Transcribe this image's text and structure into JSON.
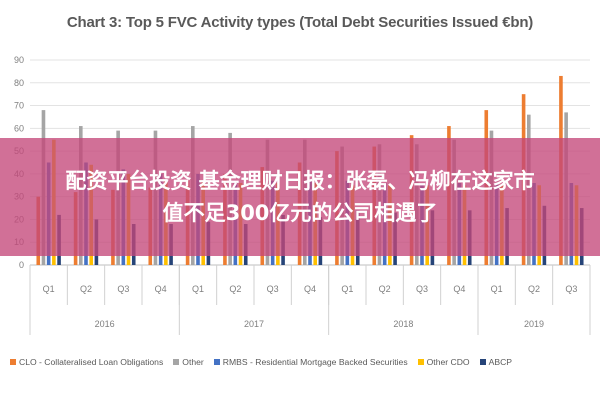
{
  "chart_data": {
    "type": "bar",
    "title": "Chart 3: Top 5 FVC Activity types (Total Debt Securities Issued €bn)",
    "xlabel": "",
    "ylabel": "",
    "ylim": [
      0,
      90
    ],
    "y_ticks": [
      "0",
      "10",
      "20",
      "30",
      "40",
      "50",
      "60",
      "70",
      "80",
      "90"
    ],
    "grid": true,
    "legend_position": "bottom",
    "categories": [
      "Q1",
      "Q2",
      "Q3",
      "Q4",
      "Q1",
      "Q2",
      "Q3",
      "Q4",
      "Q1",
      "Q2",
      "Q3",
      "Q4",
      "Q1",
      "Q2",
      "Q3"
    ],
    "year_groups": [
      {
        "label": "2016",
        "count": 4
      },
      {
        "label": "2017",
        "count": 4
      },
      {
        "label": "2018",
        "count": 4
      },
      {
        "label": "2019",
        "count": 3
      }
    ],
    "series": [
      {
        "name": "CLO - Collateralised Loan Obligations",
        "color": "#ED7D31",
        "values": [
          30,
          32,
          33,
          34,
          37,
          40,
          43,
          45,
          50,
          52,
          57,
          61,
          68,
          75,
          83
        ]
      },
      {
        "name": "Other",
        "color": "#A5A5A5",
        "values": [
          68,
          61,
          59,
          59,
          61,
          58,
          55,
          55,
          52,
          53,
          53,
          55,
          59,
          66,
          67
        ]
      },
      {
        "name": "RMBS - Residential Mortgage Backed Securities",
        "color": "#4472C4",
        "values": [
          45,
          45,
          42,
          40,
          40,
          37,
          37,
          37,
          37,
          36,
          36,
          36,
          36,
          36,
          36
        ]
      },
      {
        "name": "Other CDO",
        "color": "#FFC000",
        "values": [
          55,
          44,
          40,
          37,
          37,
          36,
          36,
          36,
          35,
          35,
          35,
          35,
          35,
          35,
          35
        ]
      },
      {
        "name": "ABCP",
        "color": "#264478",
        "values": [
          22,
          20,
          18,
          18,
          19,
          18,
          22,
          21,
          24,
          23,
          24,
          24,
          25,
          26,
          25
        ]
      }
    ]
  },
  "overlay": {
    "line1": "配资平台投资 基金理财日报：张磊、冯柳在这家市",
    "line2": "值不足300亿元的公司相遇了"
  }
}
